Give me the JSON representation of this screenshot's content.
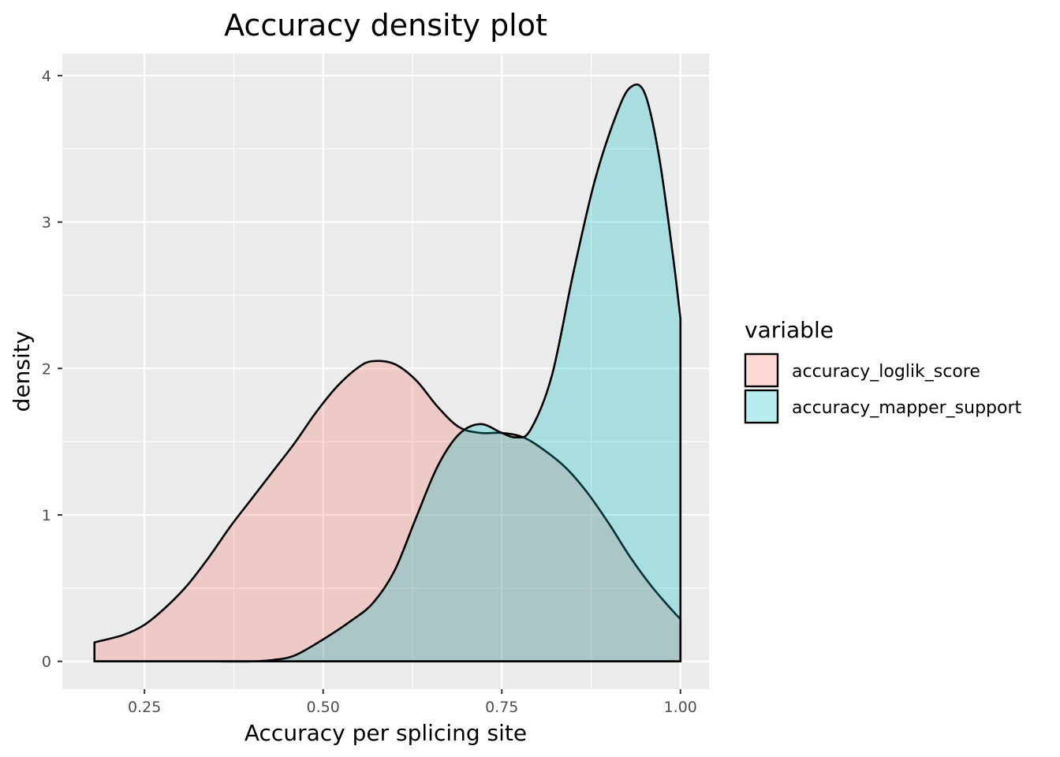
{
  "chart_data": {
    "type": "area",
    "title": "Accuracy density plot",
    "xlabel": "Accuracy per splicing site",
    "ylabel": "density",
    "xlim": [
      0.135,
      1.04
    ],
    "ylim": [
      -0.19,
      4.15
    ],
    "x_ticks": [
      0.25,
      0.5,
      0.75,
      1.0
    ],
    "x_tick_labels": [
      "0.25",
      "0.50",
      "0.75",
      "1.00"
    ],
    "y_ticks": [
      0,
      1,
      2,
      3,
      4
    ],
    "y_tick_labels": [
      "0",
      "1",
      "2",
      "3",
      "4"
    ],
    "grid": true,
    "legend": {
      "title": "variable",
      "position": "right"
    },
    "series": [
      {
        "name": "accuracy_loglik_score",
        "fill": "#f8766d",
        "points": [
          [
            0.18,
            0.13
          ],
          [
            0.22,
            0.18
          ],
          [
            0.25,
            0.25
          ],
          [
            0.28,
            0.37
          ],
          [
            0.31,
            0.52
          ],
          [
            0.34,
            0.71
          ],
          [
            0.37,
            0.92
          ],
          [
            0.4,
            1.11
          ],
          [
            0.43,
            1.3
          ],
          [
            0.46,
            1.49
          ],
          [
            0.49,
            1.7
          ],
          [
            0.52,
            1.88
          ],
          [
            0.55,
            2.01
          ],
          [
            0.57,
            2.05
          ],
          [
            0.6,
            2.03
          ],
          [
            0.63,
            1.92
          ],
          [
            0.66,
            1.74
          ],
          [
            0.69,
            1.6
          ],
          [
            0.72,
            1.56
          ],
          [
            0.75,
            1.56
          ],
          [
            0.78,
            1.53
          ],
          [
            0.81,
            1.44
          ],
          [
            0.84,
            1.32
          ],
          [
            0.87,
            1.15
          ],
          [
            0.9,
            0.94
          ],
          [
            0.93,
            0.71
          ],
          [
            0.96,
            0.51
          ],
          [
            0.99,
            0.34
          ],
          [
            1.0,
            0.29
          ]
        ]
      },
      {
        "name": "accuracy_mapper_support",
        "fill": "#00bfc4",
        "points": [
          [
            0.18,
            0.0
          ],
          [
            0.25,
            0.0
          ],
          [
            0.3,
            0.0
          ],
          [
            0.35,
            0.0
          ],
          [
            0.4,
            0.0
          ],
          [
            0.43,
            0.01
          ],
          [
            0.46,
            0.04
          ],
          [
            0.5,
            0.15
          ],
          [
            0.54,
            0.28
          ],
          [
            0.57,
            0.4
          ],
          [
            0.6,
            0.62
          ],
          [
            0.63,
            0.98
          ],
          [
            0.66,
            1.33
          ],
          [
            0.69,
            1.55
          ],
          [
            0.72,
            1.62
          ],
          [
            0.75,
            1.56
          ],
          [
            0.77,
            1.53
          ],
          [
            0.79,
            1.58
          ],
          [
            0.82,
            1.95
          ],
          [
            0.85,
            2.65
          ],
          [
            0.88,
            3.28
          ],
          [
            0.91,
            3.73
          ],
          [
            0.93,
            3.92
          ],
          [
            0.95,
            3.88
          ],
          [
            0.97,
            3.45
          ],
          [
            0.99,
            2.75
          ],
          [
            1.0,
            2.34
          ]
        ]
      }
    ]
  }
}
